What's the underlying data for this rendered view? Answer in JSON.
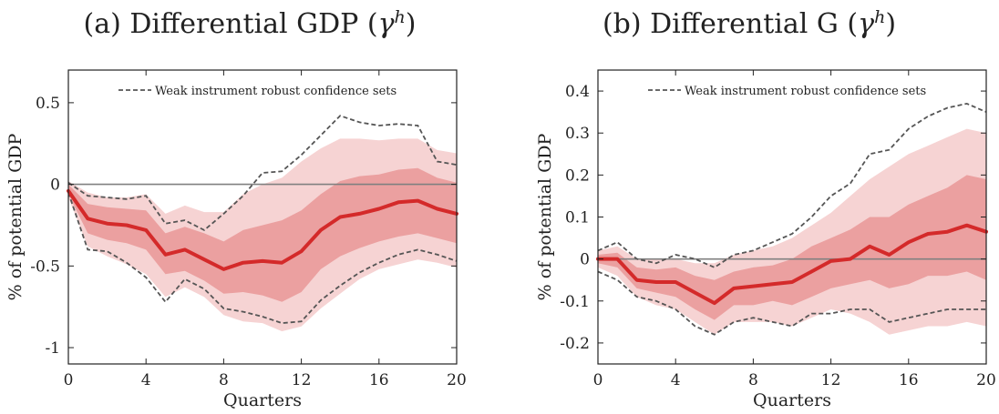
{
  "charts": [
    {
      "title_main": "(a) Differential GDP (",
      "title_symbol": "γ",
      "title_sup": "h",
      "title_close": ")"
    },
    {
      "title_main": "(b) Differential G (",
      "title_symbol": "γ",
      "title_sup": "h",
      "title_close": ")"
    }
  ],
  "chart_data": [
    {
      "type": "line",
      "title": "(a) Differential GDP (γh)",
      "xlabel": "Quarters",
      "ylabel": "% of potential GDP",
      "xlim": [
        0,
        20
      ],
      "ylim": [
        -1.1,
        0.7
      ],
      "xticks": [
        0,
        4,
        8,
        12,
        16,
        20
      ],
      "yticks": [
        0.5,
        0,
        -0.5,
        -1
      ],
      "ytick_labels": [
        "0.5",
        "0",
        "-0.5",
        "-1"
      ],
      "zero_line": true,
      "legend": {
        "entry": "Weak instrument robust confidence sets",
        "placement": "top"
      },
      "x": [
        0,
        1,
        2,
        3,
        4,
        5,
        6,
        7,
        8,
        9,
        10,
        11,
        12,
        13,
        14,
        15,
        16,
        17,
        18,
        19,
        20
      ],
      "series": [
        {
          "values": [
            -0.04,
            -0.21,
            -0.24,
            -0.25,
            -0.28,
            -0.43,
            -0.4,
            -0.46,
            -0.52,
            -0.48,
            -0.47,
            -0.48,
            -0.41,
            -0.28,
            -0.2,
            -0.18,
            -0.15,
            -0.11,
            -0.1,
            -0.15,
            -0.18
          ]
        }
      ],
      "bands": [
        {
          "level": "outer",
          "upper": [
            0.02,
            -0.05,
            -0.08,
            -0.08,
            -0.06,
            -0.18,
            -0.13,
            -0.17,
            -0.17,
            -0.06,
            0.0,
            0.04,
            0.14,
            0.22,
            0.28,
            0.28,
            0.27,
            0.28,
            0.28,
            0.21,
            0.19
          ],
          "lower": [
            -0.08,
            -0.38,
            -0.44,
            -0.49,
            -0.55,
            -0.69,
            -0.63,
            -0.69,
            -0.8,
            -0.84,
            -0.85,
            -0.9,
            -0.87,
            -0.76,
            -0.67,
            -0.58,
            -0.52,
            -0.49,
            -0.46,
            -0.48,
            -0.51
          ]
        },
        {
          "level": "inner",
          "upper": [
            0.0,
            -0.12,
            -0.14,
            -0.15,
            -0.16,
            -0.3,
            -0.26,
            -0.3,
            -0.35,
            -0.28,
            -0.25,
            -0.22,
            -0.16,
            -0.06,
            0.02,
            0.05,
            0.06,
            0.09,
            0.1,
            0.04,
            0.01
          ],
          "lower": [
            -0.06,
            -0.3,
            -0.34,
            -0.36,
            -0.4,
            -0.55,
            -0.53,
            -0.59,
            -0.67,
            -0.66,
            -0.68,
            -0.72,
            -0.66,
            -0.52,
            -0.44,
            -0.39,
            -0.35,
            -0.32,
            -0.3,
            -0.33,
            -0.36
          ]
        }
      ],
      "robust_sets": {
        "upper": [
          0.01,
          -0.07,
          -0.08,
          -0.09,
          -0.07,
          -0.24,
          -0.22,
          -0.28,
          -0.18,
          -0.07,
          0.07,
          0.08,
          0.18,
          0.3,
          0.42,
          0.38,
          0.36,
          0.37,
          0.36,
          0.14,
          0.12
        ],
        "lower": [
          -0.05,
          -0.4,
          -0.41,
          -0.48,
          -0.57,
          -0.72,
          -0.58,
          -0.64,
          -0.76,
          -0.78,
          -0.81,
          -0.85,
          -0.84,
          -0.71,
          -0.62,
          -0.54,
          -0.48,
          -0.43,
          -0.4,
          -0.43,
          -0.47
        ]
      },
      "colors": {
        "line": "#d42a2a",
        "band_outer": "#f6d3d3",
        "band_inner": "#eba0a0",
        "robust": "#555555",
        "zero": "#808080"
      }
    },
    {
      "type": "line",
      "title": "(b) Differential G (γh)",
      "xlabel": "Quarters",
      "ylabel": "% of potential GDP",
      "xlim": [
        0,
        20
      ],
      "ylim": [
        -0.25,
        0.45
      ],
      "xticks": [
        0,
        4,
        8,
        12,
        16,
        20
      ],
      "yticks": [
        0.4,
        0.3,
        0.2,
        0.1,
        0,
        -0.1,
        -0.2
      ],
      "ytick_labels": [
        "0.4",
        "0.3",
        "0.2",
        "0.1",
        "0",
        "-0.1",
        "-0.2"
      ],
      "zero_line": true,
      "legend": {
        "entry": "Weak instrument robust confidence sets",
        "placement": "top"
      },
      "x": [
        0,
        1,
        2,
        3,
        4,
        5,
        6,
        7,
        8,
        9,
        10,
        11,
        12,
        13,
        14,
        15,
        16,
        17,
        18,
        19,
        20
      ],
      "series": [
        {
          "values": [
            0.0,
            0.0,
            -0.05,
            -0.055,
            -0.055,
            -0.08,
            -0.105,
            -0.07,
            -0.065,
            -0.06,
            -0.055,
            -0.03,
            -0.005,
            0.0,
            0.03,
            0.01,
            0.04,
            0.06,
            0.065,
            0.08,
            0.065
          ]
        }
      ],
      "bands": [
        {
          "level": "outer",
          "upper": [
            0.02,
            0.03,
            0.0,
            0.0,
            0.0,
            -0.01,
            -0.01,
            0.01,
            0.02,
            0.03,
            0.05,
            0.08,
            0.11,
            0.15,
            0.19,
            0.22,
            0.25,
            0.27,
            0.29,
            0.31,
            0.3
          ],
          "lower": [
            -0.02,
            -0.04,
            -0.09,
            -0.11,
            -0.12,
            -0.15,
            -0.18,
            -0.15,
            -0.15,
            -0.15,
            -0.16,
            -0.14,
            -0.12,
            -0.13,
            -0.15,
            -0.18,
            -0.17,
            -0.16,
            -0.16,
            -0.15,
            -0.16
          ]
        },
        {
          "level": "inner",
          "upper": [
            0.01,
            0.015,
            -0.02,
            -0.025,
            -0.02,
            -0.04,
            -0.05,
            -0.03,
            -0.02,
            -0.015,
            0.0,
            0.03,
            0.05,
            0.07,
            0.1,
            0.1,
            0.13,
            0.15,
            0.17,
            0.2,
            0.19
          ],
          "lower": [
            -0.01,
            -0.02,
            -0.07,
            -0.08,
            -0.09,
            -0.12,
            -0.145,
            -0.11,
            -0.11,
            -0.1,
            -0.11,
            -0.09,
            -0.07,
            -0.06,
            -0.05,
            -0.07,
            -0.06,
            -0.04,
            -0.04,
            -0.03,
            -0.05
          ]
        }
      ],
      "robust_sets": {
        "upper": [
          0.02,
          0.04,
          0.0,
          -0.01,
          0.01,
          0.0,
          -0.02,
          0.01,
          0.02,
          0.04,
          0.06,
          0.1,
          0.15,
          0.18,
          0.25,
          0.26,
          0.31,
          0.34,
          0.36,
          0.37,
          0.35
        ],
        "lower": [
          -0.03,
          -0.05,
          -0.09,
          -0.1,
          -0.12,
          -0.16,
          -0.18,
          -0.15,
          -0.14,
          -0.15,
          -0.16,
          -0.13,
          -0.13,
          -0.12,
          -0.12,
          -0.15,
          -0.14,
          -0.13,
          -0.12,
          -0.12,
          -0.12
        ]
      },
      "colors": {
        "line": "#d42a2a",
        "band_outer": "#f6d3d3",
        "band_inner": "#eba0a0",
        "robust": "#555555",
        "zero": "#808080"
      }
    }
  ]
}
